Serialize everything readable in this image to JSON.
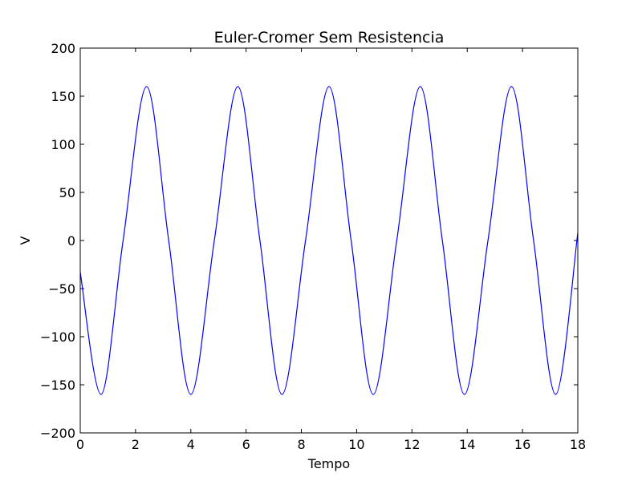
{
  "chart_data": {
    "type": "line",
    "title": "Euler-Cromer Sem Resistencia",
    "xlabel": "Tempo",
    "ylabel": "V",
    "xlim": [
      0,
      18
    ],
    "ylim": [
      -200,
      200
    ],
    "xticks": [
      0,
      2,
      4,
      6,
      8,
      10,
      12,
      14,
      16,
      18
    ],
    "yticks": [
      -200,
      -150,
      -100,
      -50,
      0,
      50,
      100,
      150,
      200
    ],
    "xtick_labels": [
      "0",
      "2",
      "4",
      "6",
      "8",
      "10",
      "12",
      "14",
      "16",
      "18"
    ],
    "ytick_labels": [
      "−200",
      "−150",
      "−100",
      "−50",
      "0",
      "50",
      "100",
      "150",
      "200"
    ],
    "grid": false,
    "line_color": "#0000ff",
    "series": [
      {
        "x": [
          0.0,
          0.75,
          1.55,
          2.4,
          3.2,
          4.0,
          4.85,
          5.7,
          6.5,
          7.3,
          8.15,
          9.0,
          9.8,
          10.6,
          11.45,
          12.3,
          13.1,
          13.9,
          14.75,
          15.6,
          16.4,
          17.2,
          18.0
        ],
        "values": [
          -33,
          -160,
          0,
          160,
          0,
          -160,
          0,
          160,
          0,
          -160,
          0,
          160,
          0,
          -160,
          0,
          160,
          0,
          -160,
          0,
          160,
          0,
          -160,
          8
        ]
      }
    ]
  }
}
